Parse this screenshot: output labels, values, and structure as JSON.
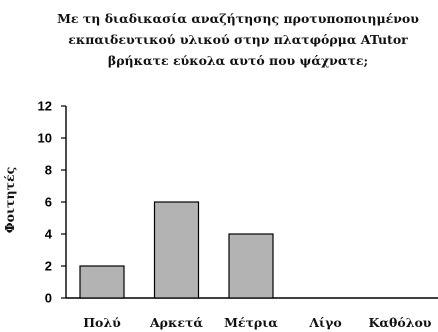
{
  "chart_data": {
    "type": "bar",
    "title_lines": [
      "Με τη διαδικασία αναζήτησης προτυποποιημένου",
      "εκπαιδευτικού υλικού στην πλατφόρμα ATutor",
      "βρήκατε εύκολα αυτό που ψάχνατε;"
    ],
    "categories": [
      "Πολύ",
      "Αρκετά",
      "Μέτρια",
      "Λίγο",
      "Καθόλου"
    ],
    "values": [
      2,
      6,
      4,
      0,
      0
    ],
    "xlabel": "",
    "ylabel": "Φοιτητές",
    "ylim": [
      0,
      12
    ],
    "yticks": [
      0,
      2,
      4,
      6,
      8,
      10,
      12
    ],
    "grid": false,
    "legend": "none",
    "colors": {
      "bar_fill": "#b3b3b3",
      "bar_stroke": "#000000",
      "text": "#111111"
    }
  }
}
